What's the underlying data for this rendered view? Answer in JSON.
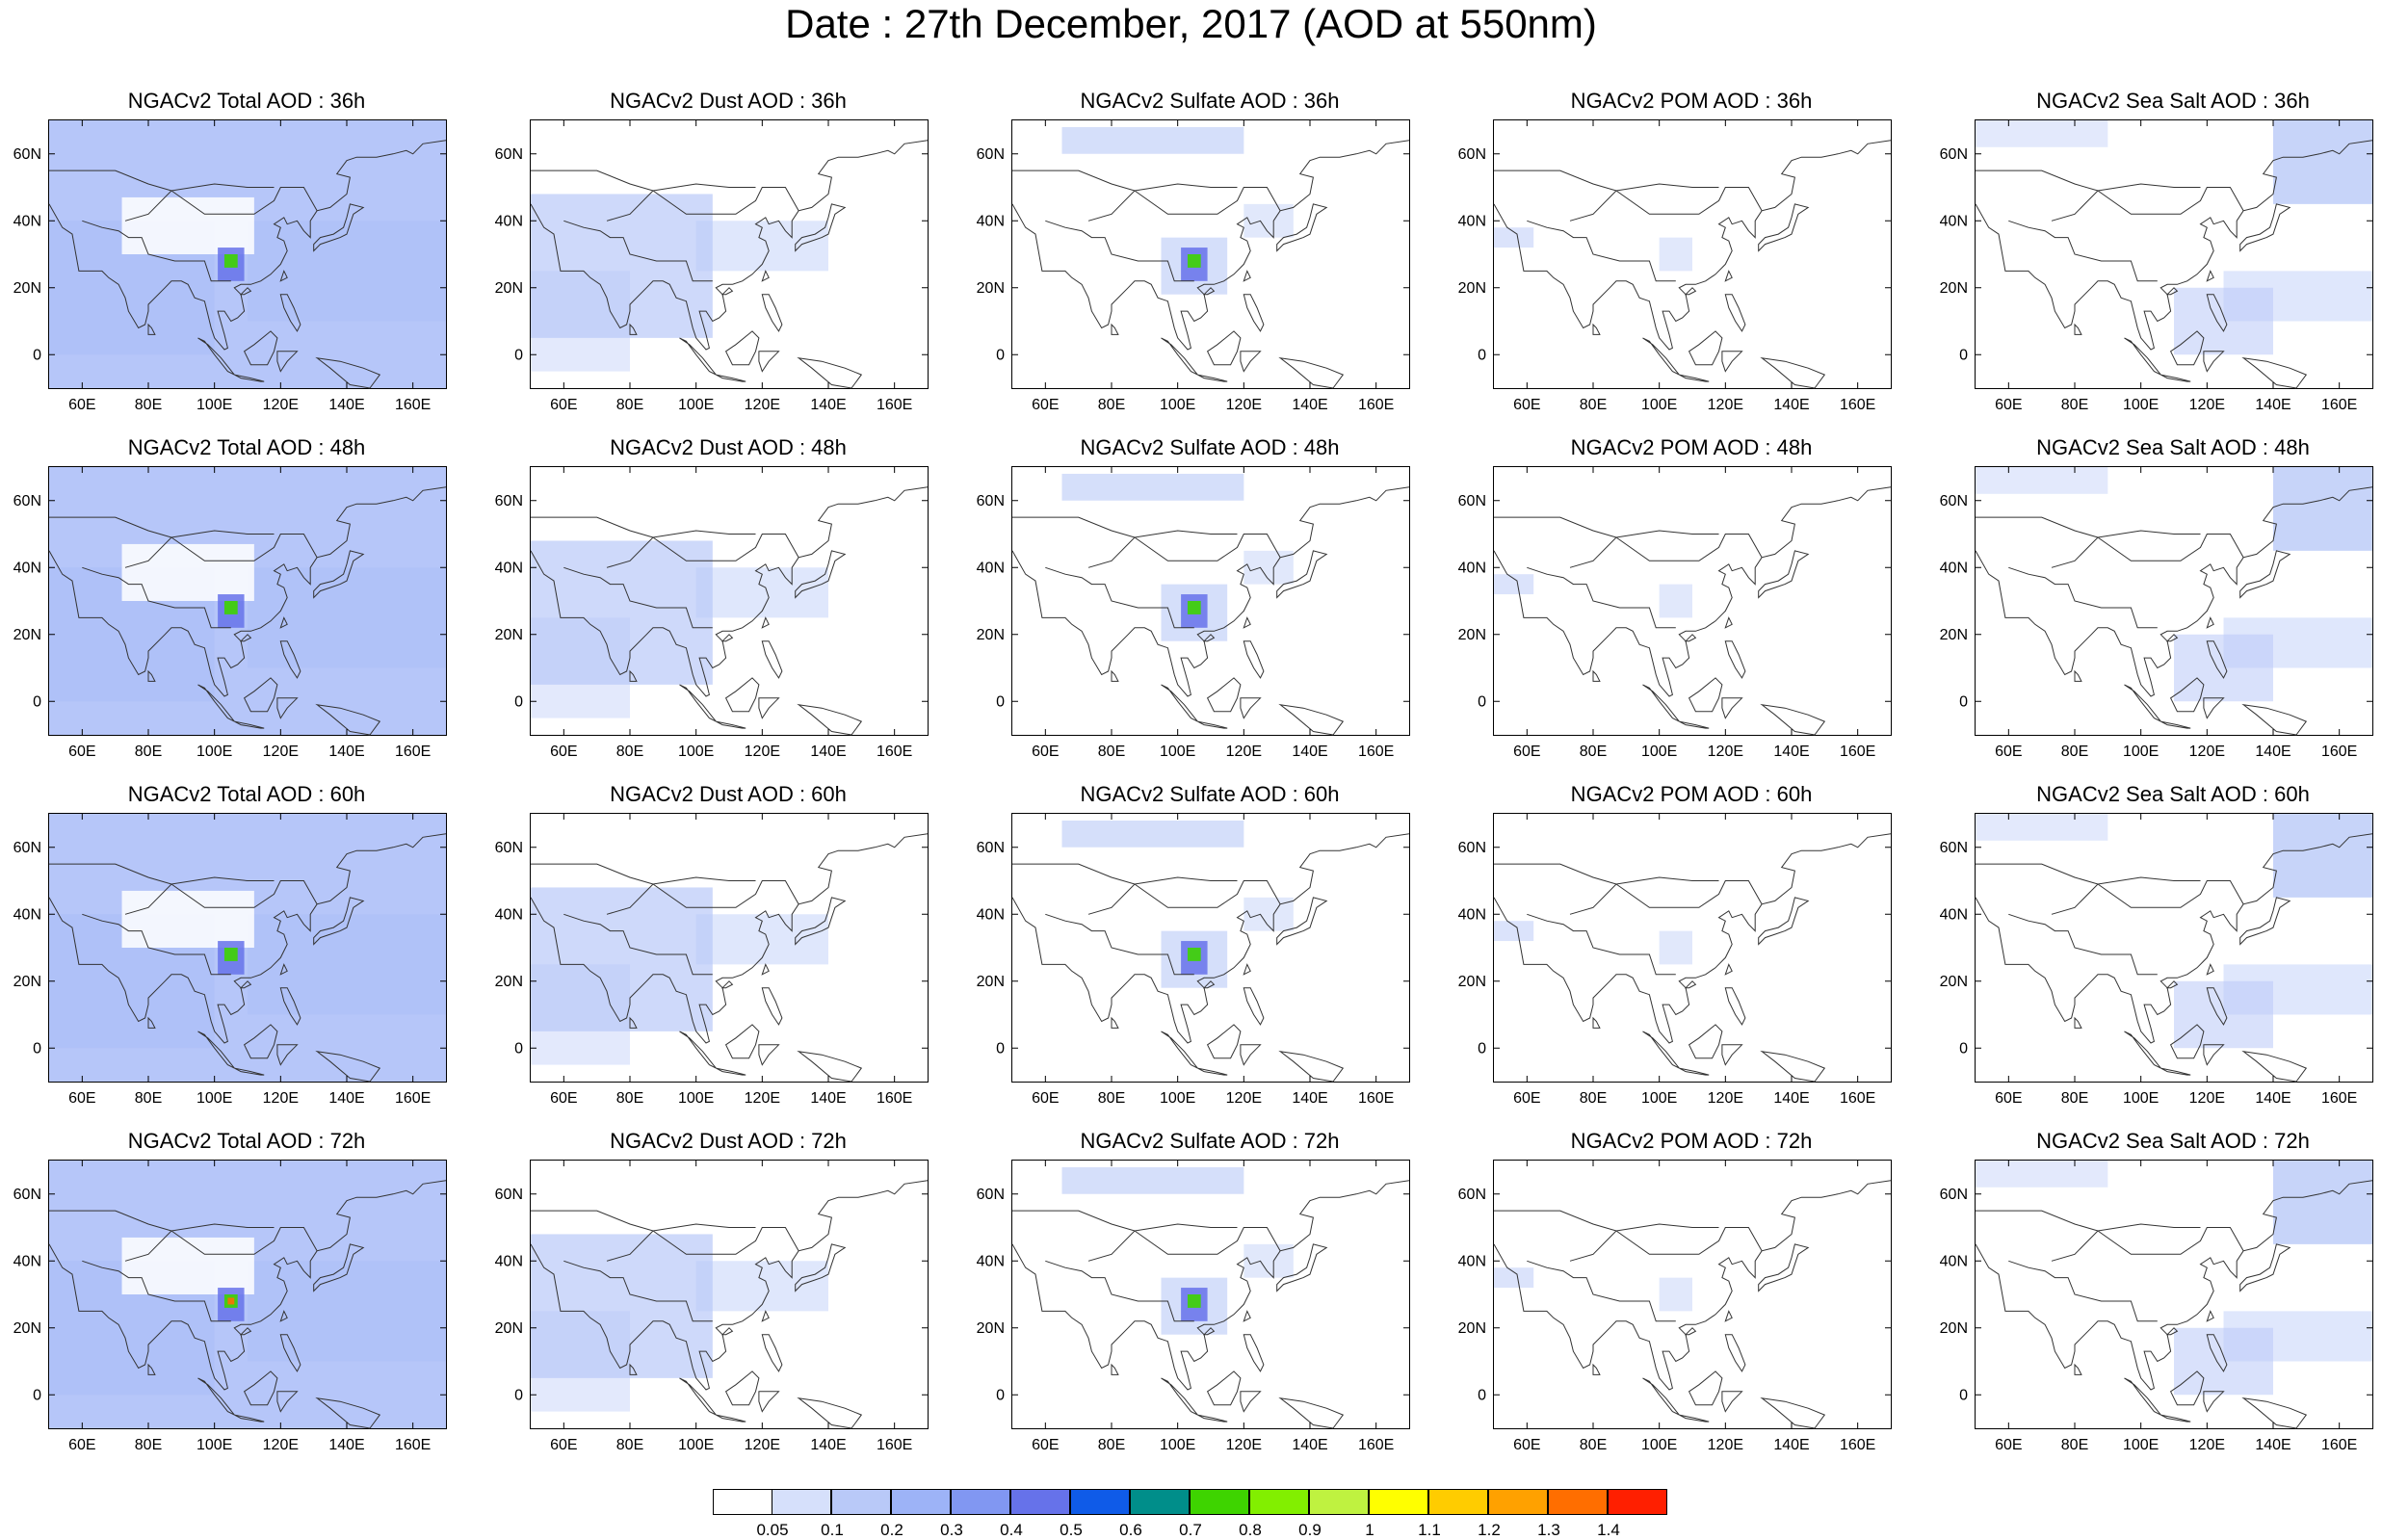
{
  "title": "Date : 27th December, 2017 (AOD at 550nm)",
  "x_ticks": [
    "60E",
    "80E",
    "100E",
    "120E",
    "140E",
    "160E"
  ],
  "y_ticks": [
    "60N",
    "40N",
    "20N",
    "0"
  ],
  "species_columns": [
    {
      "name": "Total",
      "color": "#9db3f7",
      "level": "widespread",
      "hotspot": true
    },
    {
      "name": "Dust",
      "color": "#b9c9f8",
      "level": "west-continental",
      "hotspot": false
    },
    {
      "name": "Sulfate",
      "color": "#c3d1f8",
      "level": "sparse",
      "hotspot": true
    },
    {
      "name": "POM",
      "color": "#c3d1f8",
      "level": "minimal",
      "hotspot": false
    },
    {
      "name": "Sea Salt",
      "color": "#b9c9f8",
      "level": "oceanic",
      "hotspot": false
    }
  ],
  "panels": [
    {
      "title": "NGACv2 Total AOD : 36h"
    },
    {
      "title": "NGACv2 Dust AOD : 36h"
    },
    {
      "title": "NGACv2 Sulfate AOD : 36h"
    },
    {
      "title": "NGACv2 POM AOD : 36h"
    },
    {
      "title": "NGACv2 Sea Salt AOD : 36h"
    },
    {
      "title": "NGACv2 Total AOD : 48h"
    },
    {
      "title": "NGACv2 Dust AOD : 48h"
    },
    {
      "title": "NGACv2 Sulfate AOD : 48h"
    },
    {
      "title": "NGACv2 POM AOD : 48h"
    },
    {
      "title": "NGACv2 Sea Salt AOD : 48h"
    },
    {
      "title": "NGACv2 Total AOD : 60h"
    },
    {
      "title": "NGACv2 Dust AOD : 60h"
    },
    {
      "title": "NGACv2 Sulfate AOD : 60h"
    },
    {
      "title": "NGACv2 POM AOD : 60h"
    },
    {
      "title": "NGACv2 Sea Salt AOD : 60h"
    },
    {
      "title": "NGACv2 Total AOD : 72h"
    },
    {
      "title": "NGACv2 Dust AOD : 72h"
    },
    {
      "title": "NGACv2 Sulfate AOD : 72h"
    },
    {
      "title": "NGACv2 POM AOD : 72h"
    },
    {
      "title": "NGACv2 Sea Salt  AOD : 72h"
    }
  ],
  "colorbar": {
    "colors": [
      "#ffffff",
      "#d6e0fb",
      "#b9c9f8",
      "#9db3f7",
      "#8197f2",
      "#6672ea",
      "#0f5be8",
      "#008e8a",
      "#3ed400",
      "#82ef00",
      "#bff240",
      "#ffff00",
      "#ffcc00",
      "#ffa100",
      "#ff6e00",
      "#ff1f00"
    ],
    "labels": [
      "0.05",
      "0.1",
      "0.2",
      "0.3",
      "0.4",
      "0.5",
      "0.6",
      "0.7",
      "0.8",
      "0.9",
      "1",
      "1.1",
      "1.2",
      "1.3",
      "1.4"
    ]
  }
}
